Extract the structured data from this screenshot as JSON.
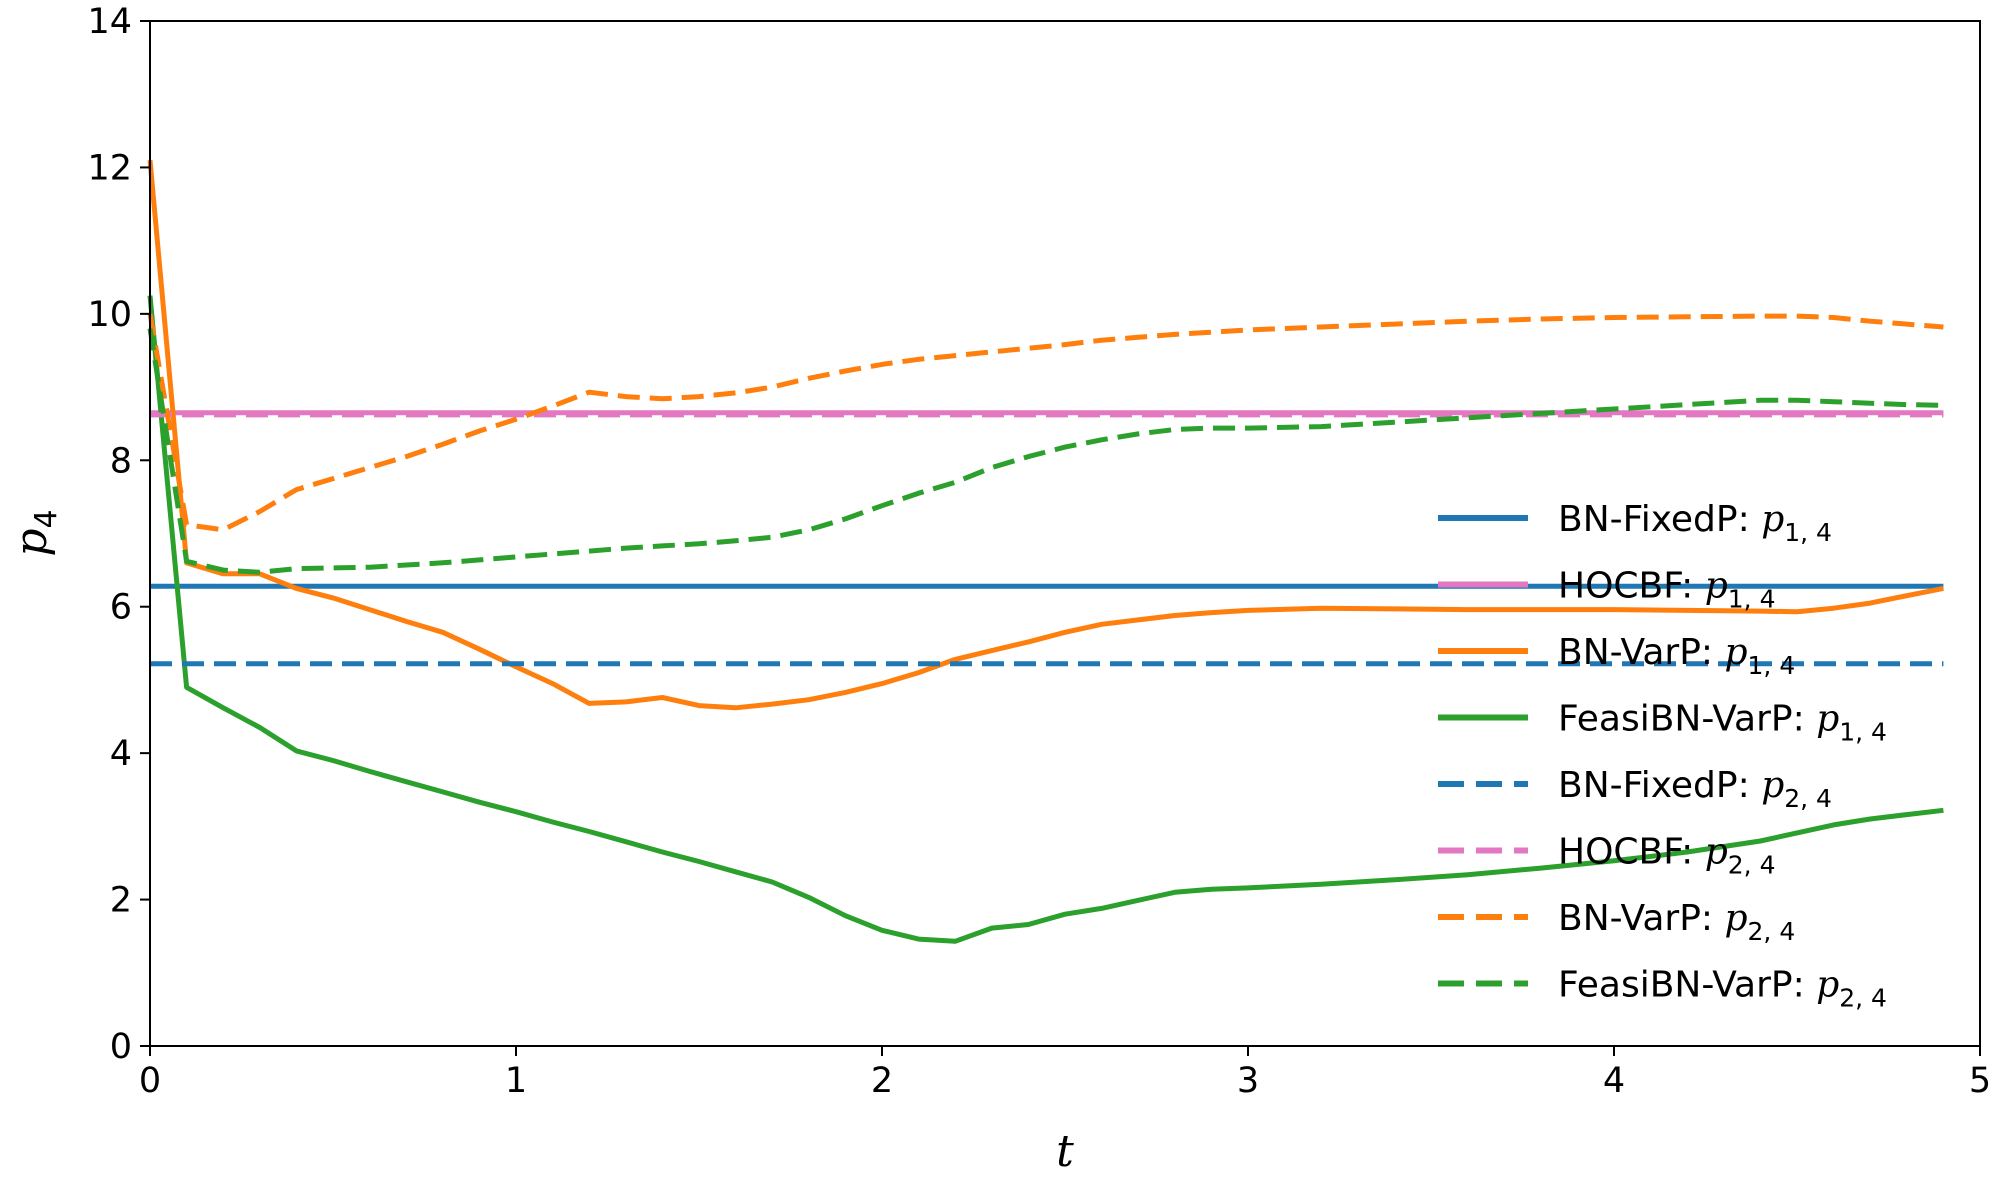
{
  "chart_data": {
    "type": "line",
    "title": "",
    "xlabel": "t",
    "ylabel": "p",
    "ylabel_sub": "4",
    "xlim": [
      0,
      5
    ],
    "ylim": [
      0,
      14
    ],
    "xticks": [
      0,
      1,
      2,
      3,
      4,
      5
    ],
    "yticks": [
      0,
      2,
      4,
      6,
      8,
      10,
      12,
      14
    ],
    "x_tick_labels": [
      "0",
      "1",
      "2",
      "3",
      "4",
      "5"
    ],
    "y_tick_labels": [
      "0",
      "2",
      "4",
      "6",
      "8",
      "10",
      "12",
      "14"
    ],
    "grid": false,
    "legend_position": "center-right",
    "series": [
      {
        "name": "BN-FixedP: p1,4",
        "legend_prefix": "BN-FixedP: ",
        "legend_var": "p",
        "legend_sub": "1, 4",
        "color": "#1f77b4",
        "dash": "solid",
        "x": [
          0,
          4.9
        ],
        "y": [
          6.28,
          6.28
        ]
      },
      {
        "name": "HOCBF: p1,4",
        "legend_prefix": "HOCBF: ",
        "legend_var": "p",
        "legend_sub": "1, 4",
        "color": "#e377c2",
        "dash": "solid",
        "x": [
          0,
          4.9
        ],
        "y": [
          8.65,
          8.65
        ]
      },
      {
        "name": "BN-VarP: p1,4",
        "legend_prefix": "BN-VarP: ",
        "legend_var": "p",
        "legend_sub": "1, 4",
        "color": "#ff7f0e",
        "dash": "solid",
        "x": [
          0,
          0.1,
          0.2,
          0.3,
          0.4,
          0.5,
          0.6,
          0.7,
          0.8,
          0.9,
          1.0,
          1.1,
          1.2,
          1.3,
          1.4,
          1.5,
          1.6,
          1.7,
          1.8,
          1.9,
          2.0,
          2.1,
          2.2,
          2.3,
          2.4,
          2.5,
          2.6,
          2.7,
          2.8,
          2.9,
          3.0,
          3.2,
          3.4,
          3.6,
          3.8,
          4.0,
          4.2,
          4.4,
          4.5,
          4.6,
          4.7,
          4.8,
          4.9
        ],
        "y": [
          12.1,
          6.6,
          6.45,
          6.45,
          6.25,
          6.12,
          5.96,
          5.8,
          5.65,
          5.42,
          5.18,
          4.95,
          4.68,
          4.7,
          4.76,
          4.65,
          4.62,
          4.67,
          4.73,
          4.83,
          4.95,
          5.1,
          5.28,
          5.4,
          5.52,
          5.65,
          5.76,
          5.82,
          5.88,
          5.92,
          5.95,
          5.98,
          5.97,
          5.96,
          5.96,
          5.96,
          5.95,
          5.94,
          5.93,
          5.98,
          6.05,
          6.15,
          6.25
        ]
      },
      {
        "name": "FeasiBN-VarP: p1,4",
        "legend_prefix": "FeasiBN-VarP: ",
        "legend_var": "p",
        "legend_sub": "1, 4",
        "color": "#2ca02c",
        "dash": "solid",
        "x": [
          0,
          0.1,
          0.2,
          0.3,
          0.4,
          0.5,
          0.6,
          0.7,
          0.8,
          0.9,
          1.0,
          1.1,
          1.2,
          1.3,
          1.4,
          1.5,
          1.6,
          1.7,
          1.8,
          1.9,
          2.0,
          2.1,
          2.2,
          2.3,
          2.4,
          2.5,
          2.6,
          2.7,
          2.8,
          2.9,
          3.0,
          3.2,
          3.4,
          3.6,
          3.8,
          4.0,
          4.2,
          4.4,
          4.5,
          4.6,
          4.7,
          4.8,
          4.9
        ],
        "y": [
          10.25,
          4.9,
          4.62,
          4.35,
          4.03,
          3.9,
          3.75,
          3.61,
          3.47,
          3.33,
          3.2,
          3.06,
          2.93,
          2.79,
          2.65,
          2.52,
          2.38,
          2.24,
          2.03,
          1.78,
          1.58,
          1.46,
          1.43,
          1.61,
          1.66,
          1.8,
          1.88,
          1.99,
          2.1,
          2.14,
          2.16,
          2.21,
          2.27,
          2.34,
          2.43,
          2.53,
          2.65,
          2.8,
          2.91,
          3.02,
          3.1,
          3.16,
          3.22
        ]
      },
      {
        "name": "BN-FixedP: p2,4",
        "legend_prefix": "BN-FixedP: ",
        "legend_var": "p",
        "legend_sub": "2, 4",
        "color": "#1f77b4",
        "dash": "dashed",
        "x": [
          0,
          4.9
        ],
        "y": [
          5.22,
          5.22
        ]
      },
      {
        "name": "HOCBF: p2,4",
        "legend_prefix": "HOCBF: ",
        "legend_var": "p",
        "legend_sub": "2, 4",
        "color": "#e377c2",
        "dash": "dashed",
        "x": [
          0,
          4.9
        ],
        "y": [
          8.62,
          8.62
        ]
      },
      {
        "name": "BN-VarP: p2,4",
        "legend_prefix": "BN-VarP: ",
        "legend_var": "p",
        "legend_sub": "2, 4",
        "color": "#ff7f0e",
        "dash": "dashed",
        "x": [
          0,
          0.1,
          0.2,
          0.3,
          0.4,
          0.5,
          0.6,
          0.7,
          0.8,
          0.9,
          1.0,
          1.1,
          1.2,
          1.3,
          1.4,
          1.5,
          1.6,
          1.7,
          1.8,
          1.9,
          2.0,
          2.1,
          2.2,
          2.3,
          2.4,
          2.5,
          2.6,
          2.7,
          2.8,
          2.9,
          3.0,
          3.2,
          3.4,
          3.6,
          3.8,
          4.0,
          4.2,
          4.4,
          4.5,
          4.6,
          4.7,
          4.8,
          4.9
        ],
        "y": [
          10.0,
          7.12,
          7.05,
          7.3,
          7.6,
          7.75,
          7.9,
          8.05,
          8.22,
          8.4,
          8.56,
          8.74,
          8.93,
          8.87,
          8.84,
          8.87,
          8.92,
          9.0,
          9.12,
          9.22,
          9.31,
          9.38,
          9.43,
          9.48,
          9.53,
          9.58,
          9.64,
          9.68,
          9.72,
          9.75,
          9.78,
          9.82,
          9.86,
          9.9,
          9.93,
          9.95,
          9.96,
          9.97,
          9.97,
          9.95,
          9.9,
          9.86,
          9.82
        ]
      },
      {
        "name": "FeasiBN-VarP: p2,4",
        "legend_prefix": "FeasiBN-VarP: ",
        "legend_var": "p",
        "legend_sub": "2, 4",
        "color": "#2ca02c",
        "dash": "dashed",
        "x": [
          0,
          0.1,
          0.2,
          0.3,
          0.4,
          0.5,
          0.6,
          0.7,
          0.8,
          0.9,
          1.0,
          1.1,
          1.2,
          1.3,
          1.4,
          1.5,
          1.6,
          1.7,
          1.8,
          1.9,
          2.0,
          2.1,
          2.2,
          2.3,
          2.4,
          2.5,
          2.6,
          2.7,
          2.8,
          2.9,
          3.0,
          3.2,
          3.4,
          3.6,
          3.8,
          4.0,
          4.2,
          4.4,
          4.5,
          4.6,
          4.7,
          4.8,
          4.9
        ],
        "y": [
          9.8,
          6.62,
          6.5,
          6.47,
          6.52,
          6.53,
          6.54,
          6.57,
          6.6,
          6.64,
          6.68,
          6.72,
          6.76,
          6.8,
          6.83,
          6.86,
          6.9,
          6.95,
          7.05,
          7.2,
          7.38,
          7.55,
          7.7,
          7.9,
          8.05,
          8.18,
          8.28,
          8.36,
          8.42,
          8.44,
          8.44,
          8.46,
          8.52,
          8.58,
          8.64,
          8.7,
          8.76,
          8.82,
          8.82,
          8.8,
          8.78,
          8.76,
          8.75
        ]
      }
    ]
  }
}
